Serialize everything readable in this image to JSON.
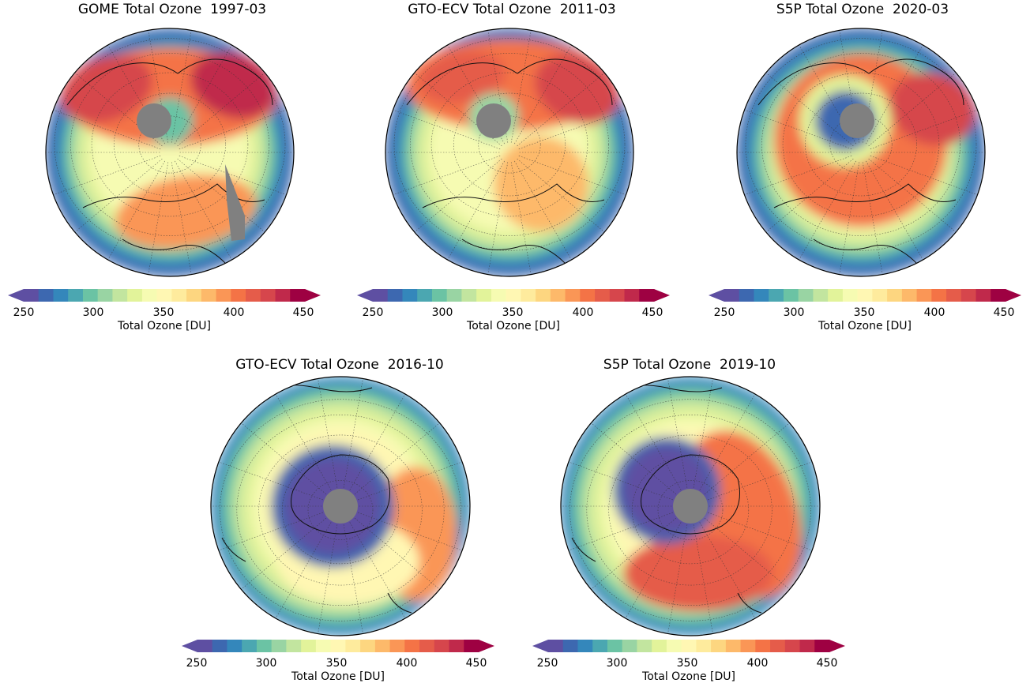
{
  "panels": [
    {
      "title": "GOME Total Ozone  1997-03",
      "hemisphere": "north",
      "pattern": "gome-1997-03"
    },
    {
      "title": "GTO-ECV Total Ozone  2011-03",
      "hemisphere": "north",
      "pattern": "gto-2011-03"
    },
    {
      "title": "S5P Total Ozone  2020-03",
      "hemisphere": "north",
      "pattern": "s5p-2020-03"
    },
    {
      "title": "GTO-ECV Total Ozone  2016-10",
      "hemisphere": "south",
      "pattern": "gto-2016-10"
    },
    {
      "title": "S5P Total Ozone  2019-10",
      "hemisphere": "south",
      "pattern": "s5p-2019-10"
    }
  ],
  "colorbar": {
    "label": "Total Ozone [DU]",
    "ticks": [
      "250",
      "300",
      "350",
      "400",
      "450"
    ],
    "min": 250,
    "max": 450,
    "step": 10,
    "extend": "both",
    "colormap": "Spectral_r",
    "colors": [
      "#5e4fa2",
      "#3d68b0",
      "#3487bb",
      "#4ba7b1",
      "#6bc3a4",
      "#99d4a3",
      "#c2e59f",
      "#e2f39a",
      "#f6fbb2",
      "#fff7b3",
      "#feeb9d",
      "#fdd680",
      "#fdb96a",
      "#fa9656",
      "#f47346",
      "#e55c4a",
      "#d6464c",
      "#c0294b",
      "#9e0142"
    ],
    "polar_cap_color": "#808080"
  }
}
